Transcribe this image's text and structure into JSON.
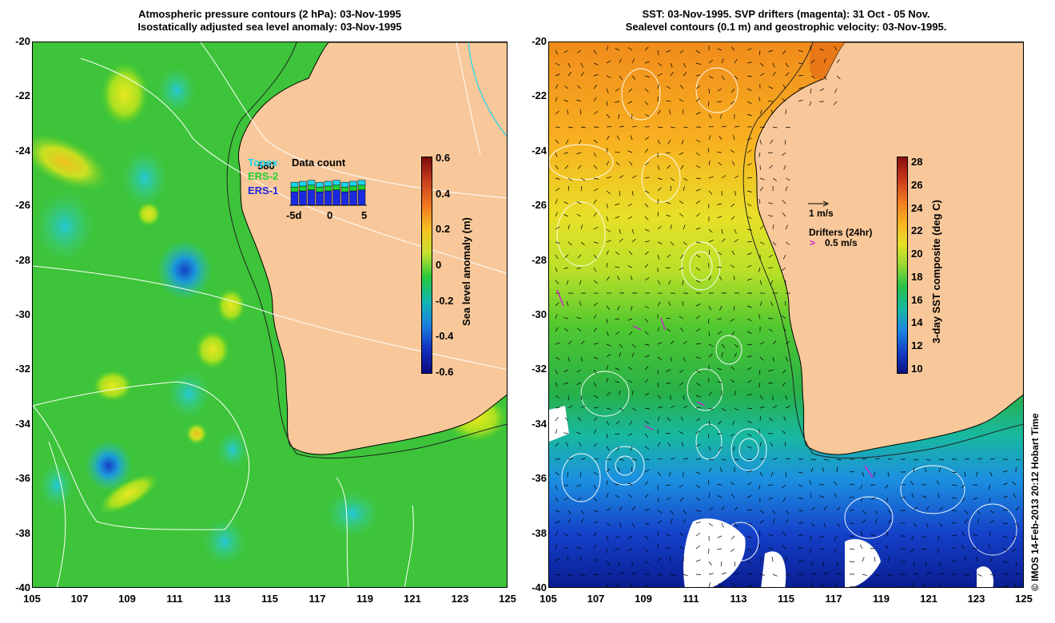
{
  "left_panel": {
    "title_line1": "Atmospheric pressure contours (2 hPa): 03-Nov-1995",
    "title_line2": "Isostatically adjusted sea level anomaly: 03-Nov-1995",
    "colorbar": {
      "label": "Sea level anomaly (m)",
      "ticks": [
        "0.6",
        "0.4",
        "0.2",
        "0",
        "-0.2",
        "-0.4",
        "-0.6"
      ]
    },
    "inset": {
      "title": "Data count",
      "count": "580",
      "legend": [
        {
          "name": "Topex",
          "color": "#19d6f0"
        },
        {
          "name": "ERS-2",
          "color": "#22d030"
        },
        {
          "name": "ERS-1",
          "color": "#1a2ae0"
        }
      ],
      "x_ticks": [
        "-5d",
        "0",
        "5"
      ]
    }
  },
  "right_panel": {
    "title_line1": "SST: 03-Nov-1995. SVP drifters (magenta): 31 Oct - 05 Nov.",
    "title_line2": "Sealevel contours (0.1 m) and geostrophic velocity: 03-Nov-1995.",
    "colorbar": {
      "label": "3-day SST composite (deg C)",
      "ticks": [
        "28",
        "26",
        "24",
        "22",
        "20",
        "18",
        "16",
        "14",
        "12",
        "10"
      ]
    },
    "velocity_scale": "1 m/s",
    "drifters_title": "Drifters (24hr)",
    "drifters_scale": "0.5 m/s"
  },
  "axes": {
    "lat_ticks": [
      "-20",
      "-22",
      "-24",
      "-26",
      "-28",
      "-30",
      "-32",
      "-34",
      "-36",
      "-38",
      "-40"
    ],
    "lon_ticks": [
      "105",
      "107",
      "109",
      "111",
      "113",
      "115",
      "117",
      "119",
      "121",
      "123",
      "125"
    ]
  },
  "credit": "© IMOS 14-Feb-2013 20:12 Hobart Time",
  "colors": {
    "land": "#f8c89a",
    "ocean_mid": "#22bb22",
    "contour": "#ffffff"
  }
}
